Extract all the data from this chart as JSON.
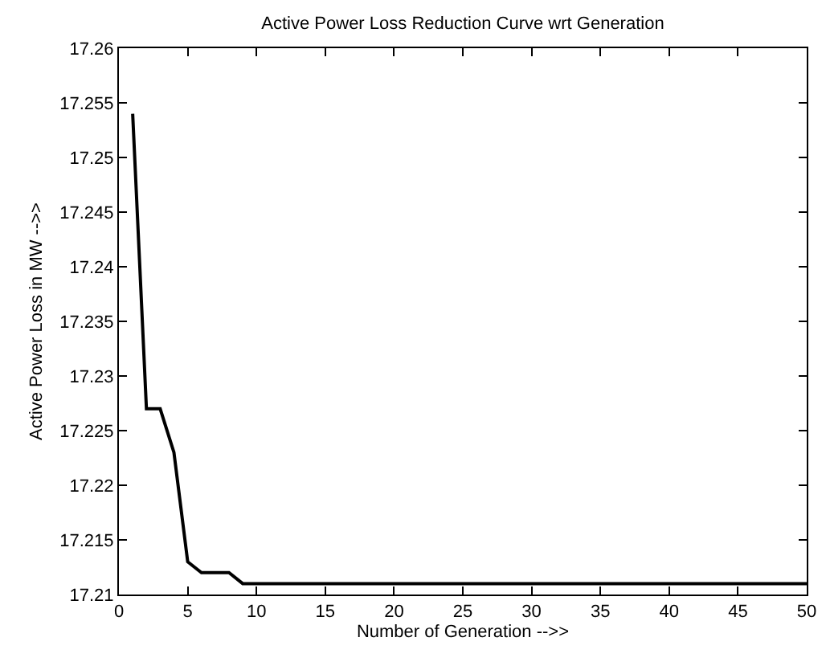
{
  "chart_data": {
    "type": "line",
    "title": "Active Power Loss Reduction Curve wrt Generation",
    "xlabel": "Number of Generation -->>",
    "ylabel": "Active Power Loss in MW -->>",
    "x": [
      1,
      2,
      3,
      4,
      5,
      6,
      7,
      8,
      9,
      10,
      11,
      12,
      13,
      14,
      15,
      16,
      17,
      18,
      19,
      20,
      21,
      22,
      23,
      24,
      25,
      26,
      27,
      28,
      29,
      30,
      31,
      32,
      33,
      34,
      35,
      36,
      37,
      38,
      39,
      40,
      41,
      42,
      43,
      44,
      45,
      46,
      47,
      48,
      49,
      50
    ],
    "series": [
      {
        "color": "#000000",
        "values": [
          17.254,
          17.227,
          17.227,
          17.223,
          17.213,
          17.212,
          17.212,
          17.212,
          17.211,
          17.211,
          17.211,
          17.211,
          17.211,
          17.211,
          17.211,
          17.211,
          17.211,
          17.211,
          17.211,
          17.211,
          17.211,
          17.211,
          17.211,
          17.211,
          17.211,
          17.211,
          17.211,
          17.211,
          17.211,
          17.211,
          17.211,
          17.211,
          17.211,
          17.211,
          17.211,
          17.211,
          17.211,
          17.211,
          17.211,
          17.211,
          17.211,
          17.211,
          17.211,
          17.211,
          17.211,
          17.211,
          17.211,
          17.211,
          17.211,
          17.211
        ]
      }
    ],
    "xlim": [
      0,
      50
    ],
    "xticks": [
      0,
      5,
      10,
      15,
      20,
      25,
      30,
      35,
      40,
      45,
      50
    ],
    "ylim": [
      17.21,
      17.26
    ],
    "yticks": [
      17.21,
      17.215,
      17.22,
      17.225,
      17.23,
      17.235,
      17.24,
      17.245,
      17.25,
      17.255,
      17.26
    ],
    "grid": false,
    "marker": "none",
    "line_style": "solid"
  }
}
